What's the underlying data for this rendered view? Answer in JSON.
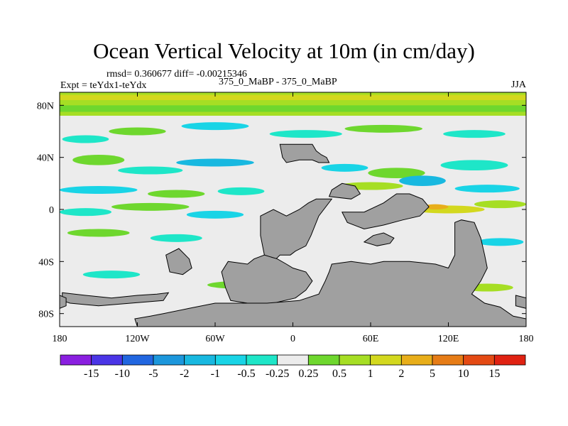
{
  "chart_data": {
    "type": "heatmap",
    "title": "Ocean Vertical Velocity at 10m (in cm/day)",
    "stats_text": "rmsd= 0.360677 diff= -0.00215346",
    "left_label": "Expt = teYdx1-teYdx",
    "center_label": "375_0_MaBP - 375_0_MaBP",
    "right_label": "JJA",
    "x_ticks": [
      "180",
      "120W",
      "60W",
      "0",
      "60E",
      "120E",
      "180"
    ],
    "x_tick_values": [
      -180,
      -120,
      -60,
      0,
      60,
      120,
      180
    ],
    "y_ticks": [
      "80N",
      "40N",
      "0",
      "40S",
      "80S"
    ],
    "y_tick_values": [
      80,
      40,
      0,
      -40,
      -80
    ],
    "xlim": [
      -180,
      180
    ],
    "ylim": [
      -90,
      90
    ],
    "colorbar_labels": [
      "-15",
      "-10",
      "-5",
      "-2",
      "-1",
      "-0.5",
      "-0.25",
      "0.25",
      "0.5",
      "1",
      "2",
      "5",
      "10",
      "15"
    ],
    "colorbar_colors": [
      "#8a1fe0",
      "#4a35e6",
      "#2166e0",
      "#1c97dc",
      "#18b8e0",
      "#19d4e6",
      "#1ee6c8",
      "#ececec",
      "#6ed72e",
      "#a6de24",
      "#d3d81e",
      "#e8ae1a",
      "#e67c16",
      "#e44a14",
      "#e02212"
    ],
    "features": {
      "land_color": "#a0a0a0",
      "neutral_color": "#ececec",
      "land": [
        [
          [
            -10,
            50
          ],
          [
            15,
            50
          ],
          [
            18,
            45
          ],
          [
            22,
            42
          ],
          [
            26,
            40
          ],
          [
            28,
            36
          ],
          [
            20,
            36
          ],
          [
            15,
            38
          ],
          [
            5,
            38
          ],
          [
            -5,
            36
          ],
          [
            -8,
            40
          ]
        ],
        [
          [
            -5,
            -5
          ],
          [
            5,
            0
          ],
          [
            12,
            5
          ],
          [
            18,
            8
          ],
          [
            30,
            8
          ],
          [
            20,
            -5
          ],
          [
            14,
            -20
          ],
          [
            10,
            -28
          ],
          [
            2,
            -32
          ],
          [
            -2,
            -35
          ],
          [
            -10,
            -35
          ],
          [
            -15,
            -40
          ],
          [
            -20,
            -42
          ],
          [
            -22,
            -35
          ],
          [
            -25,
            -20
          ],
          [
            -25,
            -5
          ],
          [
            -15,
            0
          ]
        ],
        [
          [
            28,
            10
          ],
          [
            45,
            8
          ],
          [
            52,
            12
          ],
          [
            48,
            18
          ],
          [
            38,
            20
          ],
          [
            30,
            15
          ]
        ],
        [
          [
            38,
            -2
          ],
          [
            55,
            -2
          ],
          [
            70,
            5
          ],
          [
            80,
            12
          ],
          [
            90,
            12
          ],
          [
            100,
            8
          ],
          [
            105,
            2
          ],
          [
            98,
            -5
          ],
          [
            85,
            -8
          ],
          [
            70,
            -12
          ],
          [
            55,
            -15
          ],
          [
            42,
            -10
          ]
        ],
        [
          [
            55,
            -25
          ],
          [
            62,
            -20
          ],
          [
            70,
            -18
          ],
          [
            78,
            -22
          ],
          [
            75,
            -26
          ],
          [
            65,
            -28
          ]
        ],
        [
          [
            -98,
            -35
          ],
          [
            -88,
            -30
          ],
          [
            -80,
            -38
          ],
          [
            -78,
            -45
          ],
          [
            -85,
            -50
          ],
          [
            -95,
            -48
          ]
        ],
        [
          [
            -50,
            -40
          ],
          [
            -35,
            -42
          ],
          [
            -30,
            -38
          ],
          [
            -22,
            -35
          ],
          [
            -12,
            -38
          ],
          [
            -5,
            -42
          ],
          [
            0,
            -45
          ],
          [
            10,
            -48
          ],
          [
            15,
            -55
          ],
          [
            10,
            -62
          ],
          [
            2,
            -68
          ],
          [
            -15,
            -72
          ],
          [
            -35,
            -72
          ],
          [
            -48,
            -70
          ],
          [
            -52,
            -60
          ],
          [
            -55,
            -48
          ]
        ],
        [
          [
            30,
            -42
          ],
          [
            45,
            -40
          ],
          [
            60,
            -42
          ],
          [
            70,
            -40
          ],
          [
            90,
            -40
          ],
          [
            110,
            -42
          ],
          [
            120,
            -45
          ],
          [
            125,
            -35
          ],
          [
            125,
            -10
          ],
          [
            130,
            -8
          ],
          [
            140,
            -10
          ],
          [
            145,
            -22
          ],
          [
            148,
            -35
          ],
          [
            150,
            -45
          ],
          [
            145,
            -55
          ],
          [
            138,
            -65
          ],
          [
            148,
            -72
          ],
          [
            160,
            -75
          ],
          [
            170,
            -82
          ],
          [
            180,
            -84
          ],
          [
            180,
            -90
          ],
          [
            -120,
            -90
          ],
          [
            -122,
            -84
          ],
          [
            -110,
            -82
          ],
          [
            -100,
            -80
          ],
          [
            -80,
            -76
          ],
          [
            -60,
            -72
          ],
          [
            -50,
            -72
          ],
          [
            -20,
            -72
          ],
          [
            5,
            -70
          ],
          [
            20,
            -65
          ],
          [
            25,
            -55
          ],
          [
            28,
            -48
          ]
        ],
        [
          [
            -178,
            -64
          ],
          [
            -160,
            -66
          ],
          [
            -140,
            -68
          ],
          [
            -120,
            -66
          ],
          [
            -105,
            -65
          ],
          [
            -96,
            -64
          ],
          [
            -100,
            -70
          ],
          [
            -125,
            -72
          ],
          [
            -150,
            -74
          ],
          [
            -172,
            -72
          ],
          [
            -178,
            -70
          ]
        ],
        [
          [
            172,
            -66
          ],
          [
            180,
            -68
          ],
          [
            180,
            -76
          ],
          [
            172,
            -74
          ]
        ],
        [
          [
            -180,
            -66
          ],
          [
            -175,
            -68
          ],
          [
            -175,
            -74
          ],
          [
            -180,
            -76
          ]
        ]
      ],
      "bands": [
        {
          "lat0": 72,
          "lat1": 90,
          "color": "#a6de24"
        },
        {
          "lat0": 84,
          "lat1": 88,
          "color": "#d3d81e"
        },
        {
          "lat0": 75,
          "lat1": 80,
          "color": "#6ed72e"
        }
      ],
      "blobs": [
        {
          "lon": -160,
          "lat": 54,
          "rx": 18,
          "ry": 3,
          "color": "#1ee6c8"
        },
        {
          "lon": -120,
          "lat": 60,
          "rx": 22,
          "ry": 3,
          "color": "#6ed72e"
        },
        {
          "lon": -60,
          "lat": 64,
          "rx": 26,
          "ry": 3,
          "color": "#19d4e6"
        },
        {
          "lon": 10,
          "lat": 58,
          "rx": 28,
          "ry": 3,
          "color": "#1ee6c8"
        },
        {
          "lon": 70,
          "lat": 62,
          "rx": 30,
          "ry": 3,
          "color": "#6ed72e"
        },
        {
          "lon": 140,
          "lat": 58,
          "rx": 24,
          "ry": 3,
          "color": "#1ee6c8"
        },
        {
          "lon": -150,
          "lat": 38,
          "rx": 20,
          "ry": 4,
          "color": "#6ed72e"
        },
        {
          "lon": -110,
          "lat": 30,
          "rx": 25,
          "ry": 3,
          "color": "#1ee6c8"
        },
        {
          "lon": -60,
          "lat": 36,
          "rx": 30,
          "ry": 3,
          "color": "#18b8e0"
        },
        {
          "lon": 40,
          "lat": 32,
          "rx": 18,
          "ry": 3,
          "color": "#19d4e6"
        },
        {
          "lon": 80,
          "lat": 28,
          "rx": 22,
          "ry": 4,
          "color": "#6ed72e"
        },
        {
          "lon": 140,
          "lat": 34,
          "rx": 26,
          "ry": 4,
          "color": "#1ee6c8"
        },
        {
          "lon": -150,
          "lat": 15,
          "rx": 30,
          "ry": 3,
          "color": "#19d4e6"
        },
        {
          "lon": -90,
          "lat": 12,
          "rx": 22,
          "ry": 3,
          "color": "#6ed72e"
        },
        {
          "lon": -40,
          "lat": 14,
          "rx": 18,
          "ry": 3,
          "color": "#1ee6c8"
        },
        {
          "lon": 60,
          "lat": 18,
          "rx": 25,
          "ry": 3,
          "color": "#a6de24"
        },
        {
          "lon": 100,
          "lat": 22,
          "rx": 18,
          "ry": 4,
          "color": "#18b8e0"
        },
        {
          "lon": 150,
          "lat": 16,
          "rx": 25,
          "ry": 3,
          "color": "#19d4e6"
        },
        {
          "lon": -160,
          "lat": -2,
          "rx": 20,
          "ry": 3,
          "color": "#1ee6c8"
        },
        {
          "lon": -110,
          "lat": 2,
          "rx": 30,
          "ry": 3,
          "color": "#6ed72e"
        },
        {
          "lon": -60,
          "lat": -4,
          "rx": 22,
          "ry": 3,
          "color": "#19d4e6"
        },
        {
          "lon": 120,
          "lat": 0,
          "rx": 28,
          "ry": 3,
          "color": "#d3d81e"
        },
        {
          "lon": 110,
          "lat": 2,
          "rx": 10,
          "ry": 2,
          "color": "#e8ae1a"
        },
        {
          "lon": 160,
          "lat": 4,
          "rx": 20,
          "ry": 3,
          "color": "#a6de24"
        },
        {
          "lon": -150,
          "lat": -18,
          "rx": 24,
          "ry": 3,
          "color": "#6ed72e"
        },
        {
          "lon": -90,
          "lat": -22,
          "rx": 20,
          "ry": 3,
          "color": "#1ee6c8"
        },
        {
          "lon": 160,
          "lat": -25,
          "rx": 18,
          "ry": 3,
          "color": "#19d4e6"
        },
        {
          "lon": -140,
          "lat": -50,
          "rx": 22,
          "ry": 3,
          "color": "#1ee6c8"
        },
        {
          "lon": -40,
          "lat": -58,
          "rx": 26,
          "ry": 3,
          "color": "#6ed72e"
        },
        {
          "lon": 60,
          "lat": -56,
          "rx": 30,
          "ry": 3,
          "color": "#19d4e6"
        },
        {
          "lon": 150,
          "lat": -60,
          "rx": 20,
          "ry": 3,
          "color": "#a6de24"
        }
      ]
    }
  }
}
